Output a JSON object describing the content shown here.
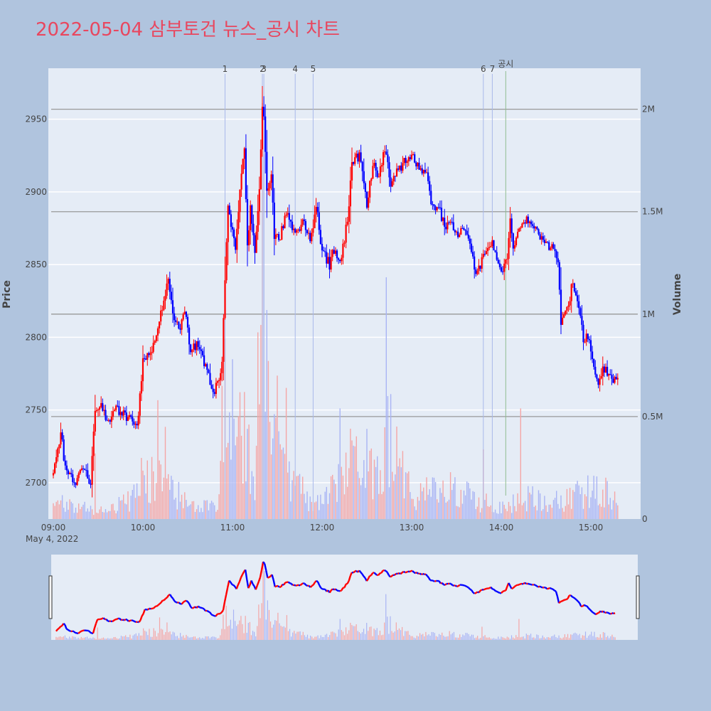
{
  "chart_title": "2022-05-04 삼부토건 뉴스_공시 차트",
  "colors": {
    "background": "#b0c4de",
    "plot_bg": "#e5ecf6",
    "title": "#e8475f",
    "up": "#ff0000",
    "down": "#0000ff",
    "marker_line": "#a9b8ea",
    "gongsi_line": "#8fbc8f",
    "volume_up": "#f4a6a6",
    "volume_down": "#a9b4f4",
    "volume_grid": "#999999"
  },
  "chart_data": {
    "type": "candlestick",
    "title": "2022-05-04 삼부토건 뉴스_공시 차트",
    "ylabel": "Price",
    "y2label": "Volume",
    "ylim": [
      2675,
      2985
    ],
    "y2lim": [
      0,
      2200000
    ],
    "y_ticks": [
      2700,
      2750,
      2800,
      2850,
      2900,
      2950
    ],
    "y2_ticks": [
      {
        "value": 0,
        "label": "0"
      },
      {
        "value": 500000,
        "label": "0.5M"
      },
      {
        "value": 1000000,
        "label": "1M"
      },
      {
        "value": 1500000,
        "label": "1.5M"
      },
      {
        "value": 2000000,
        "label": "2M"
      }
    ],
    "x_ticks": [
      "09:00",
      "10:00",
      "11:00",
      "12:00",
      "13:00",
      "14:00",
      "15:00"
    ],
    "x_date_label": "May 4, 2022",
    "markers": [
      {
        "label": "1",
        "time": "10:55"
      },
      {
        "label": "2",
        "time": "11:20"
      },
      {
        "label": "3",
        "time": "11:21"
      },
      {
        "label": "4",
        "time": "11:42"
      },
      {
        "label": "5",
        "time": "11:54"
      },
      {
        "label": "6",
        "time": "13:48"
      },
      {
        "label": "7",
        "time": "13:54"
      },
      {
        "label": "공시",
        "time": "14:03"
      }
    ],
    "keypoints": [
      [
        "09:00",
        2705
      ],
      [
        "09:05",
        2735
      ],
      [
        "09:08",
        2710
      ],
      [
        "09:15",
        2700
      ],
      [
        "09:20",
        2710
      ],
      [
        "09:25",
        2700
      ],
      [
        "09:26",
        2720
      ],
      [
        "09:28",
        2750
      ],
      [
        "09:32",
        2755
      ],
      [
        "09:36",
        2740
      ],
      [
        "09:42",
        2750
      ],
      [
        "09:50",
        2745
      ],
      [
        "09:55",
        2740
      ],
      [
        "09:57",
        2745
      ],
      [
        "10:00",
        2785
      ],
      [
        "10:05",
        2790
      ],
      [
        "10:10",
        2805
      ],
      [
        "10:14",
        2825
      ],
      [
        "10:17",
        2840
      ],
      [
        "10:20",
        2815
      ],
      [
        "10:25",
        2805
      ],
      [
        "10:28",
        2820
      ],
      [
        "10:32",
        2790
      ],
      [
        "10:36",
        2795
      ],
      [
        "10:42",
        2780
      ],
      [
        "10:47",
        2760
      ],
      [
        "10:50",
        2770
      ],
      [
        "10:53",
        2780
      ],
      [
        "10:55",
        2840
      ],
      [
        "10:57",
        2890
      ],
      [
        "11:02",
        2860
      ],
      [
        "11:05",
        2900
      ],
      [
        "11:08",
        2930
      ],
      [
        "11:10",
        2860
      ],
      [
        "11:12",
        2890
      ],
      [
        "11:15",
        2860
      ],
      [
        "11:18",
        2900
      ],
      [
        "11:20",
        2955
      ],
      [
        "11:21",
        2950
      ],
      [
        "11:23",
        2900
      ],
      [
        "11:26",
        2910
      ],
      [
        "11:28",
        2870
      ],
      [
        "11:32",
        2870
      ],
      [
        "11:36",
        2885
      ],
      [
        "11:42",
        2870
      ],
      [
        "11:48",
        2880
      ],
      [
        "11:52",
        2865
      ],
      [
        "11:56",
        2890
      ],
      [
        "12:00",
        2860
      ],
      [
        "12:05",
        2850
      ],
      [
        "12:08",
        2860
      ],
      [
        "12:12",
        2850
      ],
      [
        "12:17",
        2880
      ],
      [
        "12:20",
        2920
      ],
      [
        "12:25",
        2925
      ],
      [
        "12:30",
        2890
      ],
      [
        "12:34",
        2920
      ],
      [
        "12:38",
        2910
      ],
      [
        "12:42",
        2930
      ],
      [
        "12:46",
        2905
      ],
      [
        "12:50",
        2915
      ],
      [
        "12:55",
        2920
      ],
      [
        "13:00",
        2925
      ],
      [
        "13:05",
        2915
      ],
      [
        "13:10",
        2910
      ],
      [
        "13:14",
        2890
      ],
      [
        "13:18",
        2890
      ],
      [
        "13:22",
        2875
      ],
      [
        "13:26",
        2880
      ],
      [
        "13:30",
        2870
      ],
      [
        "13:35",
        2875
      ],
      [
        "13:40",
        2860
      ],
      [
        "13:43",
        2845
      ],
      [
        "13:46",
        2850
      ],
      [
        "13:50",
        2860
      ],
      [
        "13:54",
        2865
      ],
      [
        "14:00",
        2845
      ],
      [
        "14:04",
        2855
      ],
      [
        "14:06",
        2880
      ],
      [
        "14:08",
        2860
      ],
      [
        "14:12",
        2875
      ],
      [
        "14:17",
        2880
      ],
      [
        "14:20",
        2880
      ],
      [
        "14:25",
        2870
      ],
      [
        "14:30",
        2865
      ],
      [
        "14:35",
        2860
      ],
      [
        "14:38",
        2850
      ],
      [
        "14:40",
        2810
      ],
      [
        "14:45",
        2820
      ],
      [
        "14:48",
        2840
      ],
      [
        "14:52",
        2820
      ],
      [
        "14:55",
        2800
      ],
      [
        "14:58",
        2800
      ],
      [
        "15:02",
        2780
      ],
      [
        "15:05",
        2770
      ],
      [
        "15:08",
        2780
      ],
      [
        "15:11",
        2775
      ],
      [
        "15:15",
        2770
      ],
      [
        "15:18",
        2775
      ]
    ],
    "volume_keypoints": [
      [
        "09:00",
        120000
      ],
      [
        "09:30",
        60000
      ],
      [
        "09:55",
        150000
      ],
      [
        "10:00",
        300000
      ],
      [
        "10:15",
        250000
      ],
      [
        "10:30",
        100000
      ],
      [
        "10:50",
        80000
      ],
      [
        "10:55",
        500000
      ],
      [
        "11:05",
        650000
      ],
      [
        "11:15",
        250000
      ],
      [
        "11:20",
        2000000
      ],
      [
        "11:25",
        550000
      ],
      [
        "11:35",
        300000
      ],
      [
        "11:50",
        150000
      ],
      [
        "12:00",
        100000
      ],
      [
        "12:20",
        400000
      ],
      [
        "12:40",
        250000
      ],
      [
        "12:45",
        600000
      ],
      [
        "13:00",
        150000
      ],
      [
        "13:20",
        220000
      ],
      [
        "13:40",
        150000
      ],
      [
        "14:00",
        80000
      ],
      [
        "14:20",
        150000
      ],
      [
        "14:40",
        120000
      ],
      [
        "15:00",
        200000
      ],
      [
        "15:15",
        180000
      ]
    ],
    "volume_spikes": [
      [
        "09:28",
        320000
      ],
      [
        "10:10",
        580000
      ],
      [
        "10:15",
        450000
      ],
      [
        "10:53",
        650000
      ],
      [
        "10:55",
        880000
      ],
      [
        "11:00",
        780000
      ],
      [
        "11:08",
        620000
      ],
      [
        "11:18",
        560000
      ],
      [
        "11:20",
        2030000
      ],
      [
        "11:21",
        1780000
      ],
      [
        "11:23",
        1020000
      ],
      [
        "11:30",
        700000
      ],
      [
        "11:36",
        640000
      ],
      [
        "12:12",
        540000
      ],
      [
        "12:30",
        440000
      ],
      [
        "12:43",
        1180000
      ],
      [
        "12:44",
        600000
      ],
      [
        "13:48",
        340000
      ],
      [
        "14:13",
        540000
      ],
      [
        "15:20",
        310000
      ]
    ]
  }
}
